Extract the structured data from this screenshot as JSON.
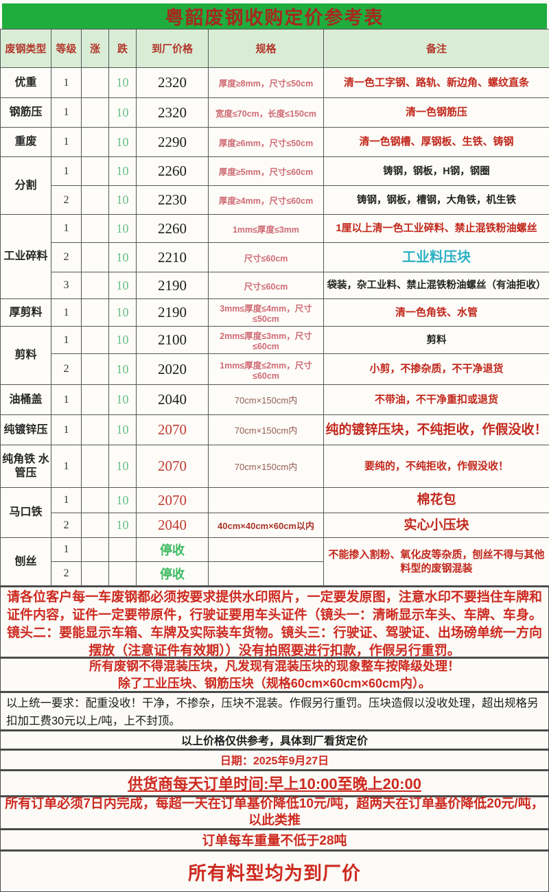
{
  "palette": {
    "green_bar": "#1fad3e",
    "title_text": "#a6281e",
    "header_bg": "#d9edd6",
    "header_text": "#b2372b",
    "fall_green": "#66bd84",
    "stop_green": "#3cba5f",
    "price_red": "#bf3a30",
    "spec_pink": "#cf6b74",
    "spec_brown": "#955a4e",
    "spec_darkred": "#a83228",
    "remark_red": "#c2271c",
    "remark_cyan": "#2cb0c4",
    "footer_red": "#cd2a20"
  },
  "title": "粤韶废钢收购定价参考表",
  "table": {
    "columns": [
      "废钢类型",
      "等级",
      "涨",
      "跌",
      "到厂价格",
      "规格",
      "备注"
    ],
    "groups": [
      {
        "type": "优重",
        "rows": [
          {
            "grade": "1",
            "rise": "",
            "fall": "10",
            "price": "2320",
            "price_style": "black",
            "spec": "厚度≥8mm，尺寸≤50cm",
            "spec_style": "mm",
            "remark": "清一色工字钢、路轨、新边角、螺纹直条",
            "remark_style": "red"
          }
        ]
      },
      {
        "type": "钢筋压",
        "rows": [
          {
            "grade": "1",
            "rise": "",
            "fall": "10",
            "price": "2320",
            "price_style": "black",
            "spec": "宽度≤70cm，长度≤150cm",
            "spec_style": "mm",
            "remark": "清一色钢筋压",
            "remark_style": "red"
          }
        ]
      },
      {
        "type": "重废",
        "rows": [
          {
            "grade": "1",
            "rise": "",
            "fall": "10",
            "price": "2290",
            "price_style": "black",
            "spec": "厚度≥6mm，尺寸≤50cm",
            "spec_style": "mm",
            "remark": "清一色钢槽、厚钢板、生铁、铸钢",
            "remark_style": "red"
          }
        ]
      },
      {
        "type": "分割",
        "rows": [
          {
            "grade": "1",
            "rise": "",
            "fall": "10",
            "price": "2260",
            "price_style": "black",
            "spec": "厚度≥5mm，尺寸≤60cm",
            "spec_style": "mm",
            "remark": "铸钢，钢板，H钢，钢圈",
            "remark_style": "black"
          },
          {
            "grade": "2",
            "rise": "",
            "fall": "10",
            "price": "2230",
            "price_style": "black",
            "spec": "厚度≥4mm，尺寸≤60cm",
            "spec_style": "mm",
            "remark": "铸钢，钢板，槽钢，大角铁，机生铁",
            "remark_style": "black"
          }
        ]
      },
      {
        "type": "工业碎料",
        "rows": [
          {
            "grade": "1",
            "rise": "",
            "fall": "10",
            "price": "2260",
            "price_style": "black",
            "spec": "1mm≤厚度≤3mm",
            "spec_style": "mm",
            "remark": "1厘以上清一色工业碎料、禁止混铁粉油螺丝",
            "remark_style": "red"
          },
          {
            "grade": "2",
            "rise": "",
            "fall": "10",
            "price": "2210",
            "price_style": "black",
            "spec": "尺寸≤60cm",
            "spec_style": "mm",
            "remark": "工业料压块",
            "remark_style": "cyan"
          },
          {
            "grade": "3",
            "rise": "",
            "fall": "10",
            "price": "2190",
            "price_style": "black",
            "spec": "尺寸≤60cm",
            "spec_style": "mm",
            "remark": "袋装，杂工业料、禁止混铁粉油螺丝（有油拒收）",
            "remark_style": "black"
          }
        ]
      },
      {
        "type": "厚剪料",
        "rows": [
          {
            "grade": "1",
            "rise": "",
            "fall": "10",
            "price": "2190",
            "price_style": "black",
            "spec": "3mm≤厚度≤4mm，尺寸≤50cm",
            "spec_style": "mm",
            "remark": "清一色角铁、水管",
            "remark_style": "red"
          }
        ]
      },
      {
        "type": "剪料",
        "rows": [
          {
            "grade": "1",
            "rise": "",
            "fall": "10",
            "price": "2100",
            "price_style": "black",
            "spec": "2mm≤厚度≤3mm，尺寸≤60cm",
            "spec_style": "mm",
            "remark": "剪料",
            "remark_style": "black"
          },
          {
            "grade": "2",
            "rise": "",
            "fall": "10",
            "price": "2020",
            "price_style": "black",
            "spec": "1mm≤厚度≤2mm，尺寸≤60cm",
            "spec_style": "mm",
            "remark": "小剪，不掺杂质，不干净退货",
            "remark_style": "red"
          }
        ]
      },
      {
        "type": "油桶盖",
        "rows": [
          {
            "grade": "1",
            "rise": "",
            "fall": "10",
            "price": "2040",
            "price_style": "black",
            "spec": "70cm×150cm内",
            "spec_style": "cm",
            "remark": "不带油，不干净重扣或退货",
            "remark_style": "red"
          }
        ]
      },
      {
        "type": "纯镀锌压",
        "rows": [
          {
            "grade": "1",
            "rise": "",
            "fall": "10",
            "price": "2070",
            "price_style": "red",
            "spec": "70cm×150cm内",
            "spec_style": "cm",
            "remark": "纯的镀锌压块，不纯拒收，作假没收！",
            "remark_style": "redlarge"
          }
        ]
      },
      {
        "type": "纯角铁 水管压",
        "rows": [
          {
            "grade": "1",
            "rise": "",
            "fall": "10",
            "price": "2070",
            "price_style": "red",
            "spec": "70cm×150cm内",
            "spec_style": "cm",
            "remark": "要纯的，不纯拒收，作假没收！",
            "remark_style": "red"
          }
        ]
      },
      {
        "type": "马口铁",
        "rows": [
          {
            "grade": "1",
            "rise": "",
            "fall": "10",
            "price": "2070",
            "price_style": "red",
            "spec": "",
            "spec_style": "cm",
            "remark": "棉花包",
            "remark_style": "redlarge"
          },
          {
            "grade": "2",
            "rise": "",
            "fall": "10",
            "price": "2040",
            "price_style": "red",
            "spec": "40cm×40cm×60cm以内",
            "spec_style": "cmbold",
            "remark": "实心小压块",
            "remark_style": "redlarge"
          }
        ]
      },
      {
        "type": "刨丝",
        "rows": [
          {
            "grade": "1",
            "rise": "",
            "fall": "",
            "price": "停收",
            "price_style": "stop",
            "spec": "",
            "spec_style": "mm",
            "remark": "不能掺入割粉、氧化皮等杂质，刨丝不得与其他料型的废钢混装",
            "remark_style": "red",
            "remark_span": 2
          },
          {
            "grade": "2",
            "rise": "",
            "fall": "",
            "price": "停收",
            "price_style": "stop",
            "spec": "",
            "spec_style": "mm"
          }
        ]
      }
    ]
  },
  "notices": [
    {
      "id": "watermark-rules",
      "text": "请各位客户每一车废钢都必须按要求提供水印照片，一定要发原图，注意水印不要挡住车牌和证件内容，证件一定要带原件，行驶证要用车头证件（镜头一：清晰显示车头、车牌、车身。镜头二：要能显示车箱、车牌及实际装车货物。镜头三：行驶证、驾驶证、出场磅单统一方向摆放（注意证件有效期））没有拍照要进行扣款，作假另行重罚。"
    },
    {
      "id": "no-mixed-blocks",
      "text": "所有废钢不得混装压块，凡发现有混装压块的现象整车按降级处理！\n除了工业压块、钢筋压块（规格60cm×60cm×60cm内）。"
    },
    {
      "id": "unified-requirements",
      "text": "以上统一要求：配重没收！干净，不掺杂，压块不混装。作假另行重罚。压块造假以没收处理，超出规格另扣加工费30元以上/吨，上不封顶。"
    },
    {
      "id": "price-reference-only",
      "text": "以上价格仅供参考，具体到厂看货定价"
    },
    {
      "id": "date",
      "text": "日期：2025年9月27日"
    },
    {
      "id": "order-time",
      "text": "供货商每天订单时间:早上10:00至晚上20:00"
    },
    {
      "id": "order-deadline",
      "text": "所有订单必须7日内完成，每超一天在订单基价降低10元/吨，超两天在订单基价降低20元/吨，以此类推"
    },
    {
      "id": "min-weight",
      "text": "订单每车重量不低于28吨"
    },
    {
      "id": "factory-price-note",
      "text": "所有料型均为到厂价"
    }
  ]
}
